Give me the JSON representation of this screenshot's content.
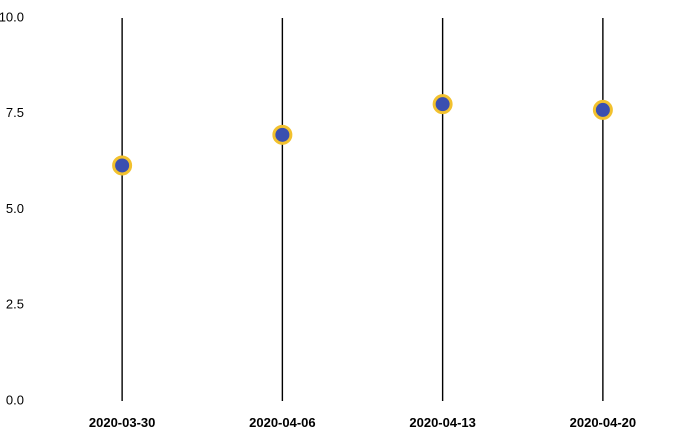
{
  "chart_data": {
    "type": "scatter",
    "title": "",
    "xlabel": "",
    "ylabel": "",
    "x": [
      "2020-03-30",
      "2020-04-06",
      "2020-04-13",
      "2020-04-20"
    ],
    "y": [
      6.15,
      6.95,
      7.75,
      7.6
    ],
    "ylim": [
      0,
      10
    ],
    "yticks": [
      "0.0",
      "2.5",
      "5.0",
      "7.5",
      "10.0"
    ],
    "grid": false,
    "legend": "none",
    "colors": {
      "marker_fill": "#3a4fb0",
      "marker_edge": "#f2c12e",
      "stem": "#000000"
    }
  }
}
